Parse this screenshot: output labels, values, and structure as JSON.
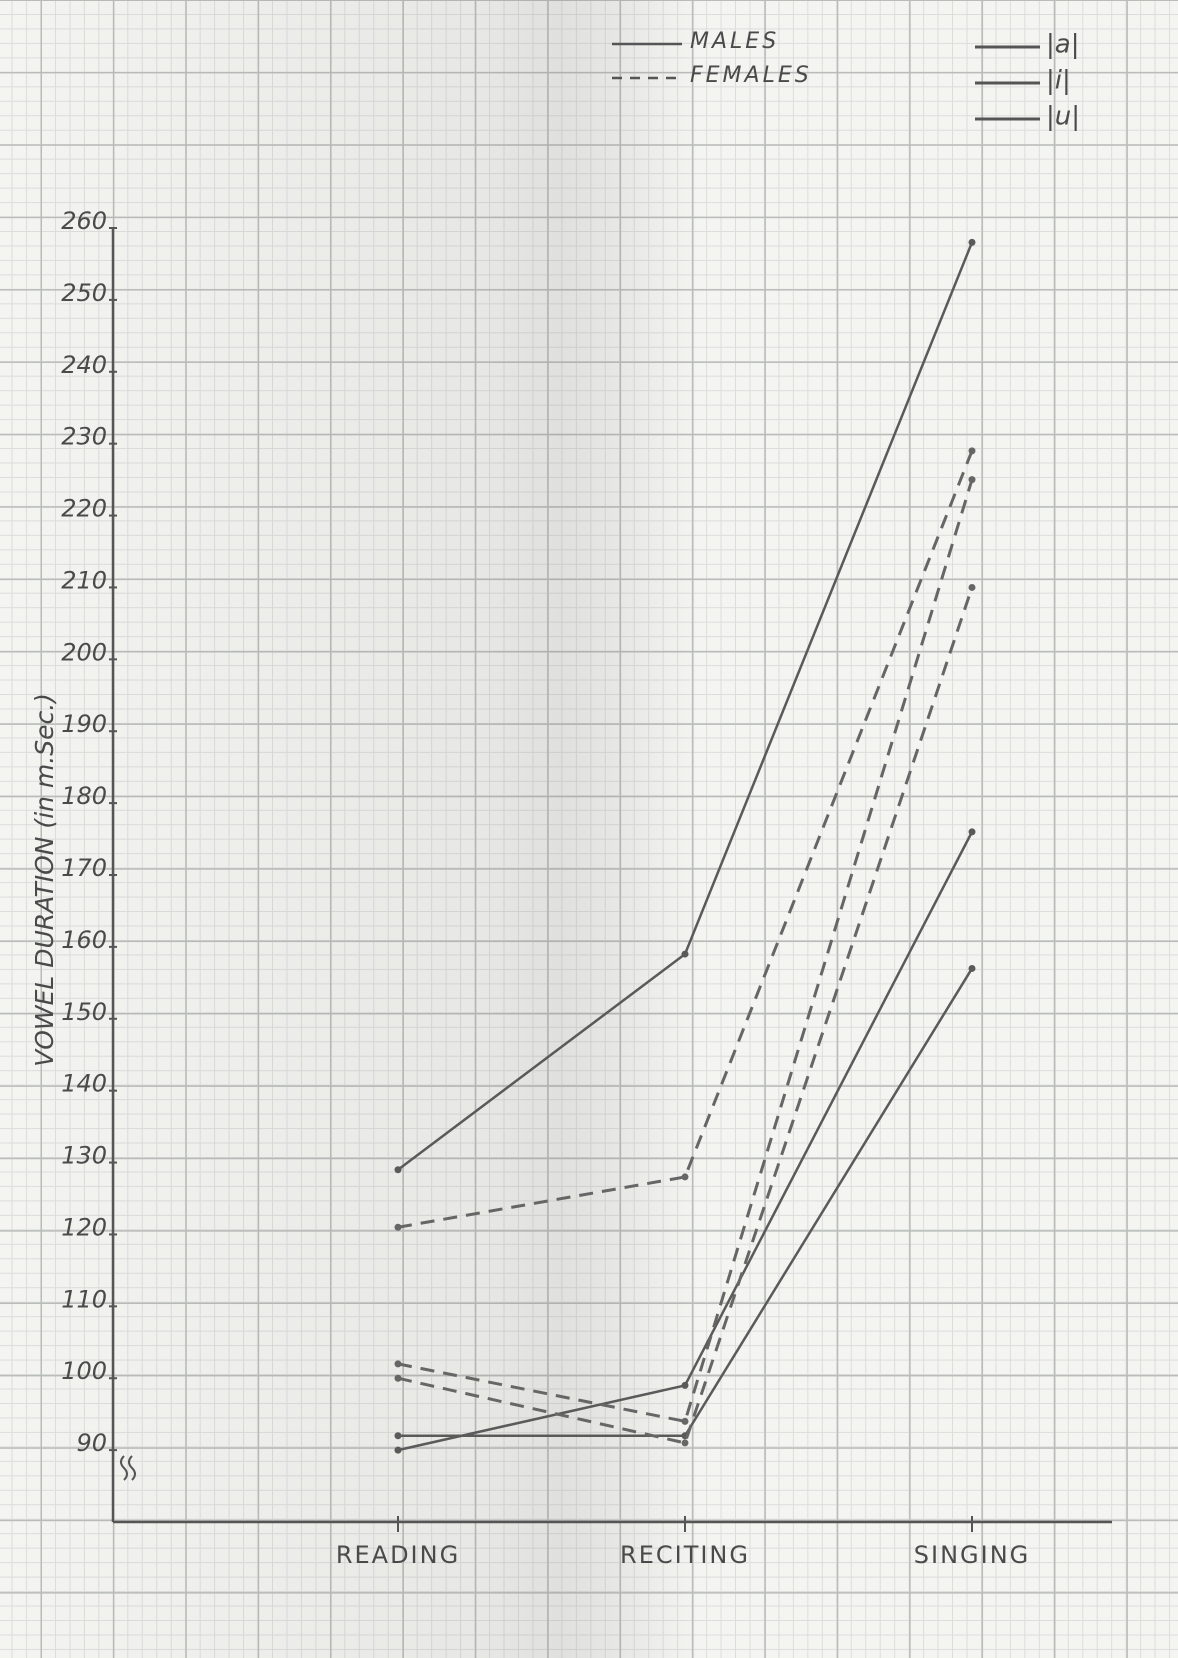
{
  "chart_data": {
    "type": "line",
    "y_label": "VOWEL DURATION (in m.Sec.)",
    "categories": [
      "READING",
      "RECITING",
      "SINGING"
    ],
    "ylim": [
      80,
      260
    ],
    "yticks": [
      90,
      100,
      110,
      120,
      130,
      140,
      150,
      160,
      170,
      180,
      190,
      200,
      210,
      220,
      230,
      240,
      250,
      260
    ],
    "legend": [
      {
        "label": "MALES",
        "dashed": false
      },
      {
        "label": "FEMALES",
        "dashed": true
      }
    ],
    "vowel_legend": [
      "|a|",
      "|i|",
      "|u|"
    ],
    "series": [
      {
        "color": "#5a5a5a",
        "dashed": false,
        "values": [
          129,
          159,
          258
        ]
      },
      {
        "color": "#5a5a5a",
        "dashed": false,
        "values": [
          90,
          99,
          176
        ]
      },
      {
        "color": "#5a5a5a",
        "dashed": false,
        "values": [
          92,
          92,
          157
        ]
      },
      {
        "color": "#666666",
        "dashed": true,
        "values": [
          121,
          128,
          229
        ]
      },
      {
        "color": "#666666",
        "dashed": true,
        "values": [
          102,
          94,
          225
        ]
      },
      {
        "color": "#666666",
        "dashed": true,
        "values": [
          100,
          91,
          210
        ]
      }
    ]
  }
}
